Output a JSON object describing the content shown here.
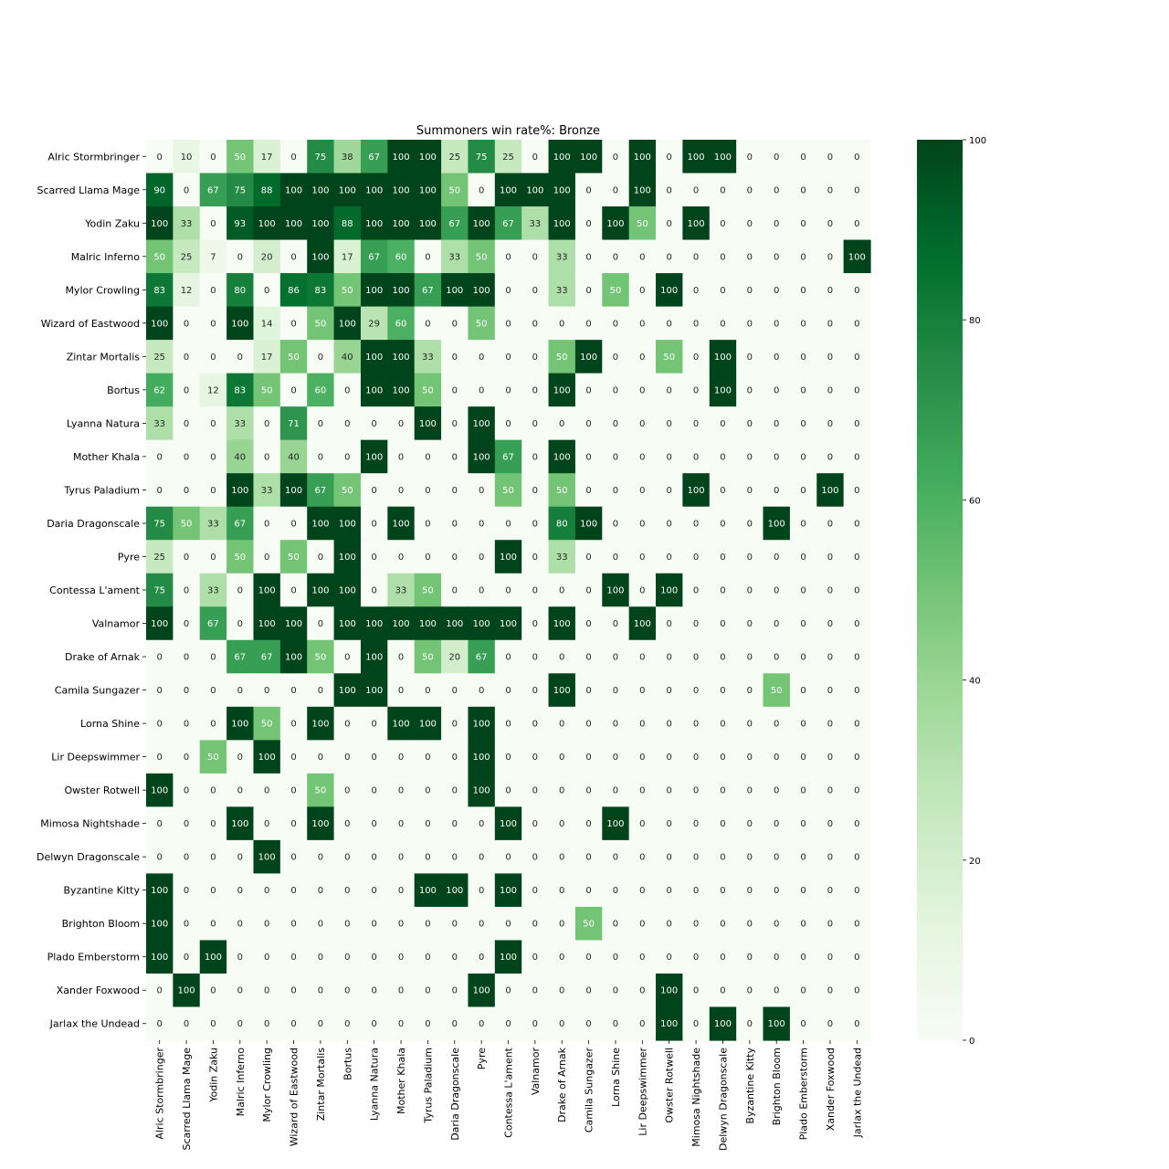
{
  "chart_data": {
    "type": "heatmap",
    "title": "Summoners win rate%: Bronze",
    "xlabel": "",
    "ylabel": "",
    "rows": [
      "Alric Stormbringer",
      "Scarred Llama Mage",
      "Yodin Zaku",
      "Malric Inferno",
      "Mylor Crowling",
      "Wizard of Eastwood",
      "Zintar Mortalis",
      "Bortus",
      "Lyanna Natura",
      "Mother Khala",
      "Tyrus Paladium",
      "Daria Dragonscale",
      "Pyre",
      "Contessa L'ament",
      "Valnamor",
      "Drake of Arnak",
      "Camila Sungazer",
      "Lorna Shine",
      "Lir Deepswimmer",
      "Owster Rotwell",
      "Mimosa Nightshade",
      "Delwyn Dragonscale",
      "Byzantine Kitty",
      "Brighton Bloom",
      "Plado Emberstorm",
      "Xander Foxwood",
      "Jarlax the Undead"
    ],
    "columns": [
      "Alric Stormbringer",
      "Scarred Llama Mage",
      "Yodin Zaku",
      "Malric Inferno",
      "Mylor Crowling",
      "Wizard of Eastwood",
      "Zintar Mortalis",
      "Bortus",
      "Lyanna Natura",
      "Mother Khala",
      "Tyrus Paladium",
      "Daria Dragonscale",
      "Pyre",
      "Contessa L'ament",
      "Valnamor",
      "Drake of Arnak",
      "Camila Sungazer",
      "Lorna Shine",
      "Lir Deepswimmer",
      "Owster Rotwell",
      "Mimosa Nightshade",
      "Delwyn Dragonscale",
      "Byzantine Kitty",
      "Brighton Bloom",
      "Plado Emberstorm",
      "Xander Foxwood",
      "Jarlax the Undead"
    ],
    "values": [
      [
        0,
        10,
        0,
        50,
        17,
        0,
        75,
        38,
        67,
        100,
        100,
        25,
        75,
        25,
        0,
        100,
        100,
        0,
        100,
        0,
        100,
        100,
        0,
        0,
        0,
        0,
        0
      ],
      [
        90,
        0,
        67,
        75,
        88,
        100,
        100,
        100,
        100,
        100,
        100,
        50,
        0,
        100,
        100,
        100,
        0,
        0,
        100,
        0,
        0,
        0,
        0,
        0,
        0,
        0,
        0
      ],
      [
        100,
        33,
        0,
        93,
        100,
        100,
        100,
        88,
        100,
        100,
        100,
        67,
        100,
        67,
        33,
        100,
        0,
        100,
        50,
        0,
        100,
        0,
        0,
        0,
        0,
        0,
        0
      ],
      [
        50,
        25,
        7,
        0,
        20,
        0,
        100,
        17,
        67,
        60,
        0,
        33,
        50,
        0,
        0,
        33,
        0,
        0,
        0,
        0,
        0,
        0,
        0,
        0,
        0,
        0,
        100
      ],
      [
        83,
        12,
        0,
        80,
        0,
        86,
        83,
        50,
        100,
        100,
        67,
        100,
        100,
        0,
        0,
        33,
        0,
        50,
        0,
        100,
        0,
        0,
        0,
        0,
        0,
        0,
        0
      ],
      [
        100,
        0,
        0,
        100,
        14,
        0,
        50,
        100,
        29,
        60,
        0,
        0,
        50,
        0,
        0,
        0,
        0,
        0,
        0,
        0,
        0,
        0,
        0,
        0,
        0,
        0,
        0
      ],
      [
        25,
        0,
        0,
        0,
        17,
        50,
        0,
        40,
        100,
        100,
        33,
        0,
        0,
        0,
        0,
        50,
        100,
        0,
        0,
        50,
        0,
        100,
        0,
        0,
        0,
        0,
        0
      ],
      [
        62,
        0,
        12,
        83,
        50,
        0,
        60,
        0,
        100,
        100,
        50,
        0,
        0,
        0,
        0,
        100,
        0,
        0,
        0,
        0,
        0,
        100,
        0,
        0,
        0,
        0,
        0
      ],
      [
        33,
        0,
        0,
        33,
        0,
        71,
        0,
        0,
        0,
        0,
        100,
        0,
        100,
        0,
        0,
        0,
        0,
        0,
        0,
        0,
        0,
        0,
        0,
        0,
        0,
        0,
        0
      ],
      [
        0,
        0,
        0,
        40,
        0,
        40,
        0,
        0,
        100,
        0,
        0,
        0,
        100,
        67,
        0,
        100,
        0,
        0,
        0,
        0,
        0,
        0,
        0,
        0,
        0,
        0,
        0
      ],
      [
        0,
        0,
        0,
        100,
        33,
        100,
        67,
        50,
        0,
        0,
        0,
        0,
        0,
        50,
        0,
        50,
        0,
        0,
        0,
        0,
        100,
        0,
        0,
        0,
        0,
        100,
        0
      ],
      [
        75,
        50,
        33,
        67,
        0,
        0,
        100,
        100,
        0,
        100,
        0,
        0,
        0,
        0,
        0,
        80,
        100,
        0,
        0,
        0,
        0,
        0,
        0,
        100,
        0,
        0,
        0
      ],
      [
        25,
        0,
        0,
        50,
        0,
        50,
        0,
        100,
        0,
        0,
        0,
        0,
        0,
        100,
        0,
        33,
        0,
        0,
        0,
        0,
        0,
        0,
        0,
        0,
        0,
        0,
        0
      ],
      [
        75,
        0,
        33,
        0,
        100,
        0,
        100,
        100,
        0,
        33,
        50,
        0,
        0,
        0,
        0,
        0,
        0,
        100,
        0,
        100,
        0,
        0,
        0,
        0,
        0,
        0,
        0
      ],
      [
        100,
        0,
        67,
        0,
        100,
        100,
        0,
        100,
        100,
        100,
        100,
        100,
        100,
        100,
        0,
        100,
        0,
        0,
        100,
        0,
        0,
        0,
        0,
        0,
        0,
        0,
        0
      ],
      [
        0,
        0,
        0,
        67,
        67,
        100,
        50,
        0,
        100,
        0,
        50,
        20,
        67,
        0,
        0,
        0,
        0,
        0,
        0,
        0,
        0,
        0,
        0,
        0,
        0,
        0,
        0
      ],
      [
        0,
        0,
        0,
        0,
        0,
        0,
        0,
        100,
        100,
        0,
        0,
        0,
        0,
        0,
        0,
        100,
        0,
        0,
        0,
        0,
        0,
        0,
        0,
        50,
        0,
        0,
        0
      ],
      [
        0,
        0,
        0,
        100,
        50,
        0,
        100,
        0,
        0,
        100,
        100,
        0,
        100,
        0,
        0,
        0,
        0,
        0,
        0,
        0,
        0,
        0,
        0,
        0,
        0,
        0,
        0
      ],
      [
        0,
        0,
        50,
        0,
        100,
        0,
        0,
        0,
        0,
        0,
        0,
        0,
        100,
        0,
        0,
        0,
        0,
        0,
        0,
        0,
        0,
        0,
        0,
        0,
        0,
        0,
        0
      ],
      [
        100,
        0,
        0,
        0,
        0,
        0,
        50,
        0,
        0,
        0,
        0,
        0,
        100,
        0,
        0,
        0,
        0,
        0,
        0,
        0,
        0,
        0,
        0,
        0,
        0,
        0,
        0
      ],
      [
        0,
        0,
        0,
        100,
        0,
        0,
        100,
        0,
        0,
        0,
        0,
        0,
        0,
        100,
        0,
        0,
        0,
        100,
        0,
        0,
        0,
        0,
        0,
        0,
        0,
        0,
        0
      ],
      [
        0,
        0,
        0,
        0,
        100,
        0,
        0,
        0,
        0,
        0,
        0,
        0,
        0,
        0,
        0,
        0,
        0,
        0,
        0,
        0,
        0,
        0,
        0,
        0,
        0,
        0,
        0
      ],
      [
        100,
        0,
        0,
        0,
        0,
        0,
        0,
        0,
        0,
        0,
        100,
        100,
        0,
        100,
        0,
        0,
        0,
        0,
        0,
        0,
        0,
        0,
        0,
        0,
        0,
        0,
        0
      ],
      [
        100,
        0,
        0,
        0,
        0,
        0,
        0,
        0,
        0,
        0,
        0,
        0,
        0,
        0,
        0,
        0,
        50,
        0,
        0,
        0,
        0,
        0,
        0,
        0,
        0,
        0,
        0
      ],
      [
        100,
        0,
        100,
        0,
        0,
        0,
        0,
        0,
        0,
        0,
        0,
        0,
        0,
        100,
        0,
        0,
        0,
        0,
        0,
        0,
        0,
        0,
        0,
        0,
        0,
        0,
        0
      ],
      [
        0,
        100,
        0,
        0,
        0,
        0,
        0,
        0,
        0,
        0,
        0,
        0,
        100,
        0,
        0,
        0,
        0,
        0,
        0,
        100,
        0,
        0,
        0,
        0,
        0,
        0,
        0
      ],
      [
        0,
        0,
        0,
        0,
        0,
        0,
        0,
        0,
        0,
        0,
        0,
        0,
        0,
        0,
        0,
        0,
        0,
        0,
        0,
        100,
        0,
        100,
        0,
        100,
        0,
        0,
        0
      ]
    ],
    "colorbar": {
      "range": [
        0,
        100
      ],
      "ticks": [
        0,
        20,
        40,
        60,
        80,
        100
      ]
    },
    "colormap": "Greens",
    "grid": false
  }
}
